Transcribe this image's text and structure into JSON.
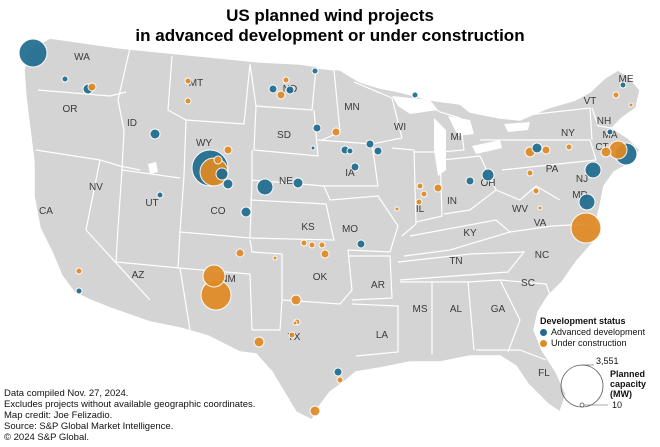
{
  "title_line1": "US planned wind projects",
  "title_line2": "in advanced development or under construction",
  "colors": {
    "advanced": "#1e6b8f",
    "construction": "#e08a22",
    "land": "#d4d4d4",
    "border": "#ffffff"
  },
  "state_labels": [
    "WA",
    "OR",
    "CA",
    "NV",
    "ID",
    "MT",
    "WY",
    "UT",
    "AZ",
    "CO",
    "NM",
    "ND",
    "SD",
    "NE",
    "KS",
    "OK",
    "TX",
    "MN",
    "IA",
    "MO",
    "AR",
    "LA",
    "WI",
    "IL",
    "MI",
    "IN",
    "OH",
    "KY",
    "TN",
    "MS",
    "AL",
    "GA",
    "FL",
    "SC",
    "NC",
    "VA",
    "WV",
    "PA",
    "NY",
    "VT",
    "NH",
    "ME",
    "MA",
    "CT",
    "NJ",
    "MD"
  ],
  "legend": {
    "title": "Development status",
    "advanced": "Advanced development",
    "construction": "Under construction",
    "cap_title": "Planned capacity (MW)",
    "cap_max": "3,551",
    "cap_min": "10"
  },
  "notes": [
    "Data compiled Nov. 27, 2024.",
    "Excludes projects without available geographic coordinates.",
    "Map credit: Joe Felizadio.",
    "Source: S&P Global Market Intelligence.",
    "© 2024 S&P Global."
  ]
}
